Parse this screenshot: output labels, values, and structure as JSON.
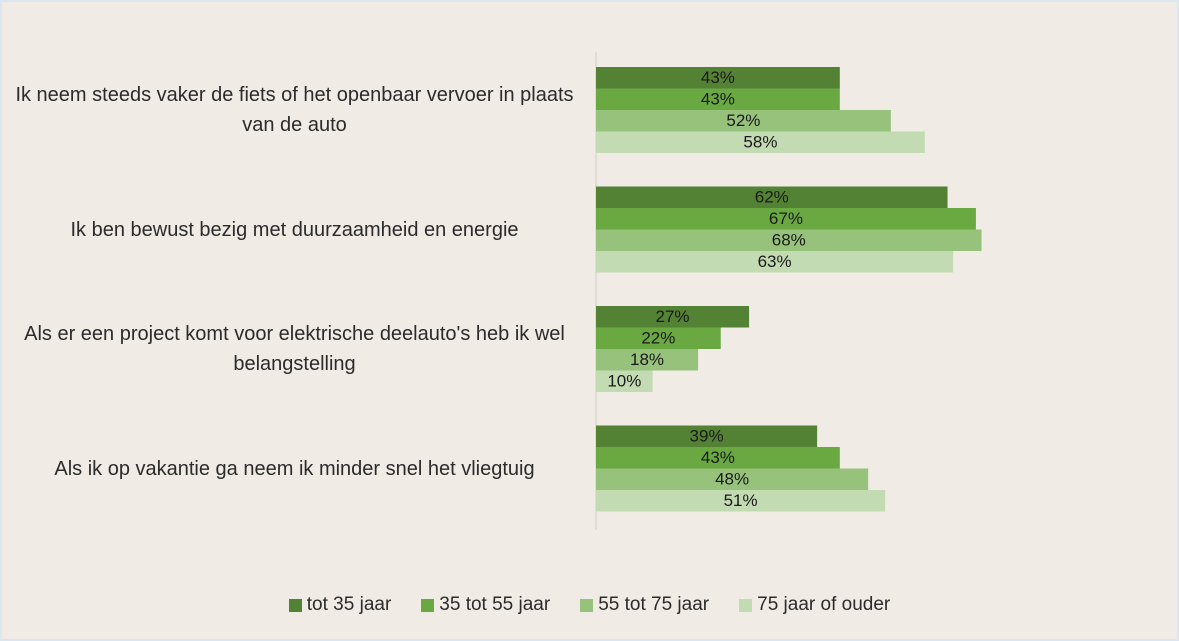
{
  "chart_data": {
    "type": "barh",
    "categories": [
      "Ik neem steeds vaker de fiets of het openbaar vervoer in plaats van de auto",
      "Ik ben bewust bezig met duurzaamheid en energie",
      "Als er een project komt voor elektrische deelauto's heb ik wel belangstelling",
      "Als ik op vakantie ga neem ik minder snel het vliegtuig"
    ],
    "series": [
      {
        "name": "tot 35 jaar",
        "color": "#548235",
        "values": [
          43,
          62,
          27,
          39
        ],
        "value_labels": [
          "43%",
          "62%",
          "27%",
          "39%"
        ]
      },
      {
        "name": "35 tot 55 jaar",
        "color": "#6aa842",
        "values": [
          43,
          67,
          22,
          43
        ],
        "value_labels": [
          "43%",
          "67%",
          "22%",
          "43%"
        ]
      },
      {
        "name": "55 tot 75 jaar",
        "color": "#97c27b",
        "values": [
          52,
          68,
          18,
          48
        ],
        "value_labels": [
          "52%",
          "68%",
          "18%",
          "48%"
        ]
      },
      {
        "name": "75 jaar of ouder",
        "color": "#c3dbb3",
        "values": [
          58,
          63,
          10,
          51
        ],
        "value_labels": [
          "58%",
          "63%",
          "10%",
          "51%"
        ]
      }
    ],
    "xlim": [
      0,
      100
    ]
  }
}
